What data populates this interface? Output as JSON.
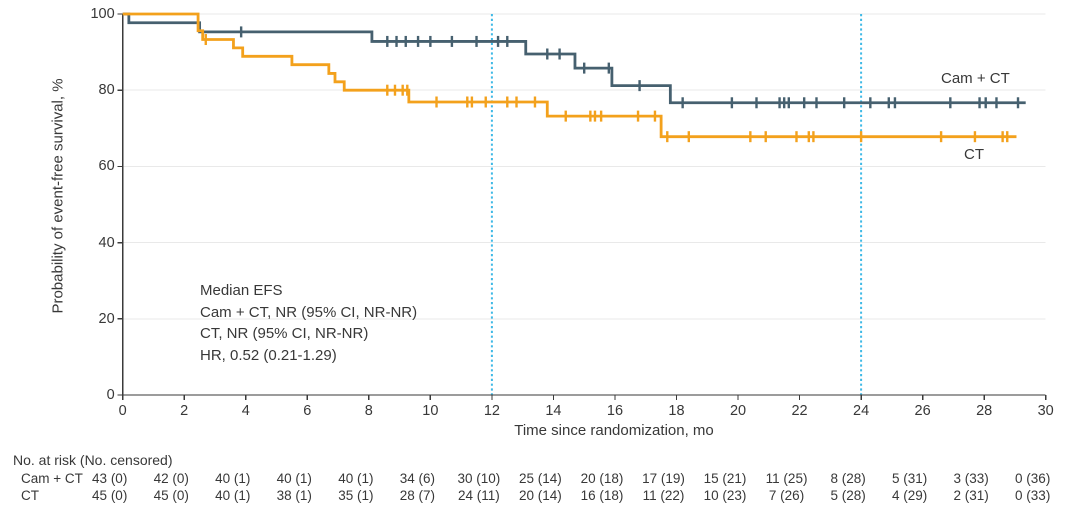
{
  "colors": {
    "cam_ct_line": "#46606f",
    "ct_line": "#f3a11c",
    "reference_line": "#3fb9e6",
    "gridline": "#e9e9e9",
    "axis": "#3a3a3a",
    "text": "#383838"
  },
  "chart_data": {
    "type": "line",
    "subtype": "kaplan-meier-step",
    "xlabel": "Time since randomization, mo",
    "ylabel": "Probability of event-free survival, %",
    "xlim": [
      0,
      30
    ],
    "ylim": [
      0,
      100
    ],
    "xticks": [
      0,
      2,
      4,
      6,
      8,
      10,
      12,
      14,
      16,
      18,
      20,
      22,
      24,
      26,
      28,
      30
    ],
    "yticks": [
      0,
      20,
      40,
      60,
      80,
      100
    ],
    "grid": "horizontal-light",
    "reference_lines_x": [
      12,
      24
    ],
    "legend_position": "curve-end-labels",
    "annotation": {
      "lines": [
        "Median EFS",
        "Cam + CT, NR (95% CI, NR-NR)",
        "CT, NR (95% CI, NR-NR)",
        "HR, 0.52 (0.21-1.29)"
      ]
    },
    "series": [
      {
        "name": "Cam + CT",
        "label": "Cam + CT",
        "color": "#46606f",
        "steps": [
          [
            0,
            100
          ],
          [
            0.2,
            97.7
          ],
          [
            2.5,
            95.3
          ],
          [
            8.1,
            92.8
          ],
          [
            13.1,
            89.5
          ],
          [
            14.7,
            85.8
          ],
          [
            15.9,
            81.2
          ],
          [
            17.8,
            76.7
          ]
        ],
        "end_x": 29.35,
        "censor_marks_x": [
          3.85,
          8.6,
          8.9,
          9.2,
          9.6,
          10.0,
          10.7,
          11.5,
          12.2,
          12.5,
          13.8,
          14.2,
          15.0,
          15.8,
          16.8,
          18.2,
          19.8,
          20.6,
          21.35,
          21.5,
          21.65,
          22.15,
          22.55,
          23.45,
          24.3,
          24.9,
          25.1,
          26.9,
          27.85,
          28.05,
          28.4,
          29.1
        ]
      },
      {
        "name": "CT",
        "label": "CT",
        "color": "#f3a11c",
        "steps": [
          [
            0,
            100
          ],
          [
            2.45,
            95.6
          ],
          [
            2.6,
            93.3
          ],
          [
            3.6,
            91.1
          ],
          [
            3.9,
            88.9
          ],
          [
            5.5,
            86.7
          ],
          [
            6.7,
            84.4
          ],
          [
            6.9,
            82.2
          ],
          [
            7.2,
            80.0
          ],
          [
            9.3,
            76.9
          ],
          [
            13.8,
            73.2
          ],
          [
            17.5,
            67.8
          ]
        ],
        "end_x": 29.05,
        "censor_marks_x": [
          2.7,
          8.6,
          8.85,
          9.1,
          9.25,
          10.2,
          11.2,
          11.35,
          11.8,
          12.5,
          12.8,
          13.4,
          14.4,
          15.2,
          15.35,
          15.55,
          16.75,
          17.3,
          17.7,
          18.4,
          20.4,
          20.9,
          21.9,
          22.3,
          22.45,
          24.0,
          26.6,
          27.7,
          28.6,
          28.75
        ]
      }
    ]
  },
  "risk_table": {
    "header": "No. at risk (No. censored)",
    "columns_mo": [
      0,
      2,
      4,
      6,
      8,
      10,
      12,
      14,
      16,
      18,
      20,
      22,
      24,
      26,
      28,
      30
    ],
    "rows": [
      {
        "label": "Cam + CT",
        "values": [
          "43 (0)",
          "42 (0)",
          "40 (1)",
          "40 (1)",
          "40 (1)",
          "34 (6)",
          "30 (10)",
          "25 (14)",
          "20 (18)",
          "17 (19)",
          "15 (21)",
          "11 (25)",
          "8 (28)",
          "5 (31)",
          "3 (33)",
          "0 (36)"
        ]
      },
      {
        "label": "CT",
        "values": [
          "45 (0)",
          "45 (0)",
          "40 (1)",
          "38 (1)",
          "35 (1)",
          "28 (7)",
          "24 (11)",
          "20 (14)",
          "16 (18)",
          "11 (22)",
          "10 (23)",
          "7 (26)",
          "5 (28)",
          "4 (29)",
          "2 (31)",
          "0 (33)"
        ]
      }
    ]
  }
}
